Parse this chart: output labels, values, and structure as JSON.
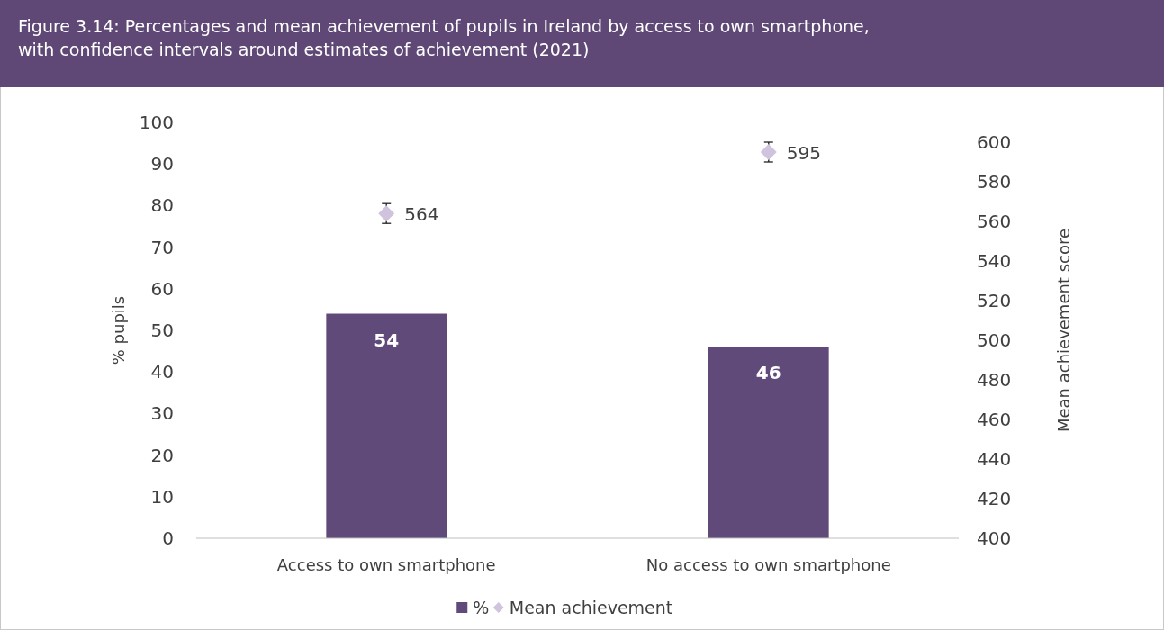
{
  "chart_data": {
    "type": "bar",
    "title": "Figure 3.14: Percentages and mean achievement of pupils in Ireland by access to own smartphone, with confidence intervals around estimates of achievement (2021)",
    "categories": [
      "Access to own smartphone",
      "No access to own smartphone"
    ],
    "series": [
      {
        "name": "%",
        "color": "#5f4a7a",
        "values": [
          54,
          46
        ]
      },
      {
        "name": "Mean achievement",
        "type": "scatter",
        "axis": "y2",
        "color": "#cfc3dd",
        "values": [
          564,
          595
        ],
        "errors": [
          5,
          5
        ]
      }
    ],
    "ylabel": "% pupils",
    "y2label": "Mean achievement score",
    "ylim": [
      0,
      100
    ],
    "yticks": [
      0,
      10,
      20,
      30,
      40,
      50,
      60,
      70,
      80,
      90,
      100
    ],
    "y2lim": [
      400,
      600
    ],
    "y2ticks": [
      400,
      420,
      440,
      460,
      480,
      500,
      520,
      540,
      560,
      580,
      600
    ],
    "data_labels": true,
    "legend": "bottom",
    "grid": false,
    "marker": "diamond"
  }
}
